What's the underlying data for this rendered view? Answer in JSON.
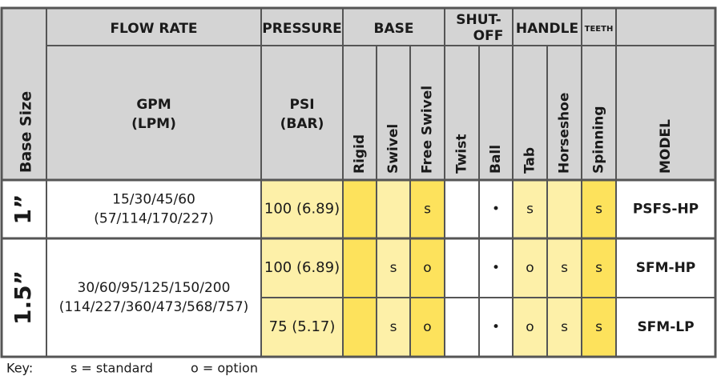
{
  "table": {
    "header": {
      "base_size": "Base Size",
      "groups": {
        "flow_rate": "FLOW RATE",
        "pressure": "PRESSURE",
        "base": "BASE",
        "shutoff": [
          "SHUT-",
          "OFF"
        ],
        "handle": "HANDLE",
        "teeth": "TEETH"
      },
      "columns": {
        "flow": [
          "GPM",
          "(LPM)"
        ],
        "pressure": [
          "PSI",
          "(BAR)"
        ],
        "rigid": "Rigid",
        "swivel": "Swivel",
        "free_swivel": "Free Swivel",
        "twist": "Twist",
        "ball": "Ball",
        "tab": "Tab",
        "horseshoe": "Horseshoe",
        "spinning": "Spinning",
        "model": "MODEL"
      }
    },
    "rows": [
      {
        "base_size": "1”",
        "flow": [
          "15/30/45/60",
          "(57/114/170/227)"
        ],
        "pressure": "100 (6.89)",
        "free_swivel": "s",
        "ball": "•",
        "tab": "s",
        "spinning": "s",
        "model": "PSFS-HP"
      },
      {
        "base_size": "1.5”",
        "flow": [
          "30/60/95/125/150/200",
          "(114/227/360/473/568/757)"
        ],
        "pressure": "100 (6.89)",
        "swivel": "s",
        "free_swivel": "o",
        "ball": "•",
        "tab": "o",
        "horseshoe": "s",
        "spinning": "s",
        "model": "SFM-HP"
      },
      {
        "pressure": "75 (5.17)",
        "swivel": "s",
        "free_swivel": "o",
        "ball": "•",
        "tab": "o",
        "horseshoe": "s",
        "spinning": "s",
        "model": "SFM-LP"
      }
    ],
    "key": {
      "label": "Key:",
      "items": [
        "s = standard",
        "o = option"
      ]
    }
  }
}
